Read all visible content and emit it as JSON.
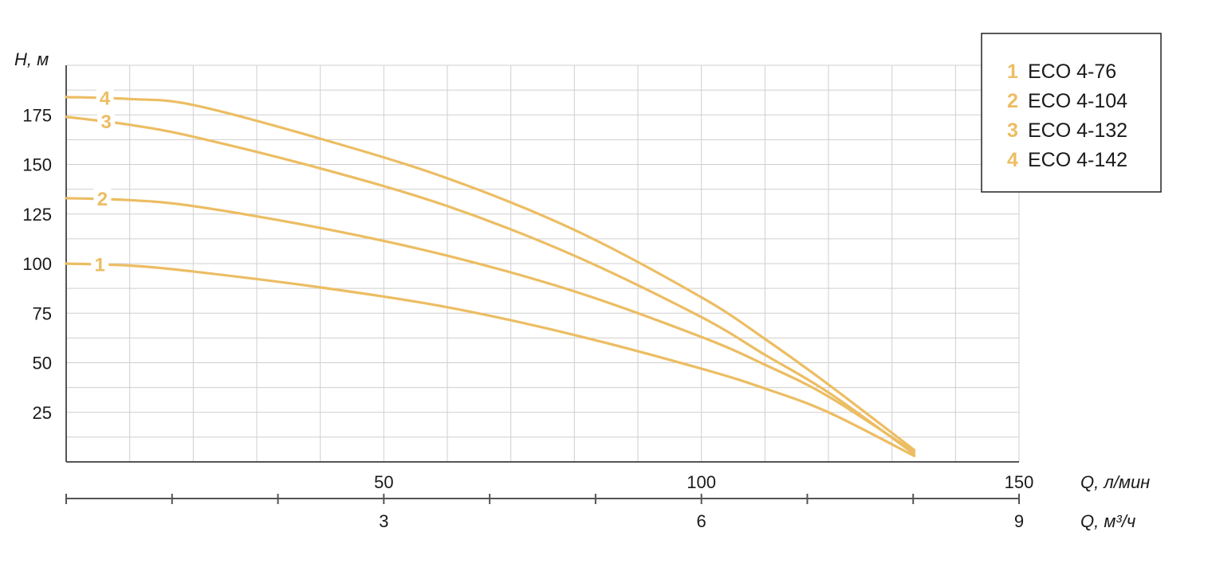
{
  "colors": {
    "curve": "#ecbd63",
    "grid": "#cfcfcf",
    "axis": "#555555",
    "text": "#1a1a1a"
  },
  "chart_data": {
    "type": "line",
    "ylabel": "H, м",
    "xlabel": "Q, л/мин",
    "xlabel2": "Q, м³/ч",
    "ylim": [
      0,
      200
    ],
    "xlim": [
      0,
      150
    ],
    "yticks": [
      25,
      50,
      75,
      100,
      125,
      150,
      175
    ],
    "xticks": [
      50,
      100,
      150
    ],
    "xticks2": [
      3,
      6,
      9
    ],
    "x2_minor_per_major": 3,
    "grid": true,
    "legend_position": "top-right",
    "legend": [
      {
        "num": "1",
        "label": "ECO 4-76"
      },
      {
        "num": "2",
        "label": "ECO 4-104"
      },
      {
        "num": "3",
        "label": "ECO 4-132"
      },
      {
        "num": "4",
        "label": "ECO 4-142"
      }
    ],
    "series": [
      {
        "label": "1",
        "x": [
          0,
          10,
          20,
          40,
          60,
          80,
          100,
          110,
          120,
          133.5
        ],
        "y": [
          100,
          99,
          96,
          88,
          78,
          64,
          47,
          37,
          25,
          3
        ]
      },
      {
        "label": "2",
        "x": [
          0,
          10,
          20,
          40,
          60,
          80,
          100,
          110,
          120,
          133.5
        ],
        "y": [
          133,
          132,
          129,
          118,
          104,
          86,
          63,
          49,
          33,
          5
        ]
      },
      {
        "label": "3",
        "x": [
          0,
          10,
          20,
          40,
          60,
          80,
          100,
          110,
          120,
          133.5
        ],
        "y": [
          174,
          170,
          164,
          148,
          129,
          104,
          73,
          54,
          35,
          4
        ]
      },
      {
        "label": "4",
        "x": [
          0,
          10,
          20,
          40,
          60,
          80,
          100,
          110,
          120,
          133.5
        ],
        "y": [
          184,
          183,
          180,
          163,
          143,
          117,
          83,
          62,
          39,
          6
        ]
      }
    ]
  }
}
